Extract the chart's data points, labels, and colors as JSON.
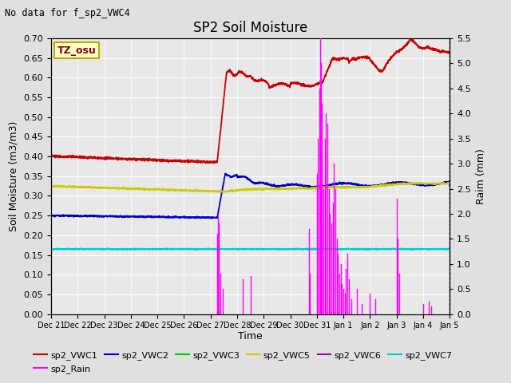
{
  "title": "SP2 Soil Moisture",
  "subtitle": "No data for f_sp2_VWC4",
  "xlabel": "Time",
  "ylabel_left": "Soil Moisture (m3/m3)",
  "ylabel_right": "Raim (mm)",
  "tz_label": "TZ_osu",
  "ylim_left": [
    0.0,
    0.7
  ],
  "ylim_right": [
    0.0,
    5.5
  ],
  "yticks_left": [
    0.0,
    0.05,
    0.1,
    0.15,
    0.2,
    0.25,
    0.3,
    0.35,
    0.4,
    0.45,
    0.5,
    0.55,
    0.6,
    0.65,
    0.7
  ],
  "yticks_right": [
    0.0,
    0.5,
    1.0,
    1.5,
    2.0,
    2.5,
    3.0,
    3.5,
    4.0,
    4.5,
    5.0,
    5.5
  ],
  "background_color": "#e0e0e0",
  "plot_bg_color": "#e8e8e8",
  "grid_color": "#ffffff",
  "colors": {
    "sp2_VWC1": "#cc0000",
    "sp2_VWC2": "#0000cc",
    "sp2_VWC3": "#00cc00",
    "sp2_VWC5": "#cccc00",
    "sp2_VWC6": "#aa00aa",
    "sp2_VWC7": "#00cccc",
    "sp2_Rain": "#ff00ff"
  },
  "xtick_labels": [
    "Dec 21",
    "Dec 22",
    "Dec 23",
    "Dec 24",
    "Dec 25",
    "Dec 26",
    "Dec 27",
    "Dec 28",
    "Dec 29",
    "Dec 30",
    "Dec 31",
    "Jan 1",
    "Jan 2",
    "Jan 3",
    "Jan 4",
    "Jan 5"
  ]
}
